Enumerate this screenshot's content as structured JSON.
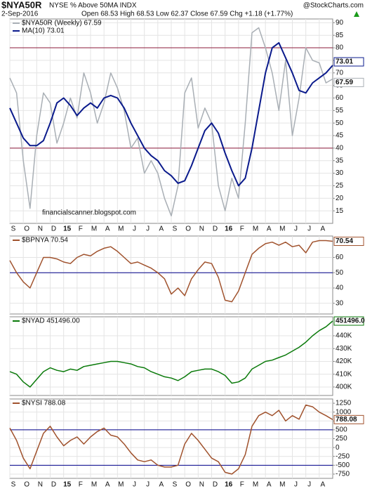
{
  "header": {
    "symbol": "$NYA50R",
    "description": "NYSE % Above 50MA  INDX",
    "source": "@StockCharts.com",
    "date": "2-Sep-2016",
    "quote": "Open 68.53  High 68.53  Low 62.37  Close 67.59  Chg +1.18 (+1.77%)"
  },
  "chart_data": [
    {
      "type": "line",
      "annotation": "financialscanner.blogspot.com",
      "categories": [
        "S",
        null,
        "O",
        null,
        "N",
        null,
        "D",
        null,
        "15",
        null,
        "F",
        null,
        "M",
        null,
        "A",
        null,
        "M",
        null,
        "J",
        null,
        "J",
        null,
        "A",
        null,
        "S",
        null,
        "O",
        null,
        "N",
        null,
        "D",
        null,
        "16",
        null,
        "F",
        null,
        "M",
        null,
        "A",
        null,
        "M",
        null,
        "J",
        null,
        "J",
        null,
        "A",
        null,
        null
      ],
      "ylim": [
        10,
        91.5
      ],
      "yticks": [
        15,
        20,
        25,
        30,
        35,
        40,
        45,
        50,
        55,
        60,
        65,
        70,
        75,
        80,
        85,
        90
      ],
      "grid": true,
      "hlines": [
        80,
        40
      ],
      "hline_color": "#8b1a3a",
      "series": [
        {
          "name": "$NYA50R (Weekly) 67.59",
          "color": "#a9afb5",
          "values": [
            68,
            62,
            35,
            16,
            45,
            62,
            58,
            42,
            50,
            60,
            52,
            70,
            62,
            50,
            58,
            70,
            64,
            55,
            40,
            44,
            30,
            35,
            30,
            20,
            13,
            25,
            62,
            68,
            48,
            56,
            50,
            25,
            15,
            28,
            20,
            50,
            86,
            88,
            80,
            70,
            55,
            75,
            45,
            60,
            80,
            75,
            74,
            66,
            67.59
          ]
        },
        {
          "name": "MA(10) 73.01",
          "color": "#0a1a8c",
          "values": [
            56,
            50,
            44,
            41,
            41,
            43,
            50,
            58,
            60,
            57,
            53,
            56,
            58,
            56,
            60,
            61,
            60,
            56,
            50,
            45,
            40,
            37,
            35,
            31,
            29,
            26,
            27,
            33,
            40,
            47,
            50,
            46,
            38,
            31,
            25,
            28,
            40,
            55,
            70,
            80,
            82,
            76,
            70,
            63,
            62,
            66,
            68,
            70,
            73.01
          ]
        }
      ]
    },
    {
      "type": "line",
      "ylim": [
        23,
        74
      ],
      "yticks": [
        30,
        40,
        50,
        60
      ],
      "grid": true,
      "hlines": [
        50
      ],
      "hline_color": "#00008b",
      "series": [
        {
          "name": "$BPNYA 70.54",
          "color": "#a0522d",
          "values": [
            58,
            50,
            44,
            40,
            50,
            60,
            60,
            59,
            57,
            56,
            60,
            62,
            61,
            64,
            66,
            67,
            64,
            60,
            56,
            57,
            55,
            53,
            50,
            46,
            36,
            40,
            35,
            46,
            52,
            57,
            56,
            47,
            32,
            31,
            38,
            50,
            62,
            66,
            69,
            70,
            68,
            70,
            67,
            68,
            63,
            70,
            71,
            71,
            70.54
          ]
        }
      ]
    },
    {
      "type": "line",
      "ylim": [
        393400,
        454800
      ],
      "yticks": [
        {
          "value": 400000,
          "label": "400K"
        },
        {
          "value": 410000,
          "label": "410K"
        },
        {
          "value": 420000,
          "label": "420K"
        },
        {
          "value": 430000,
          "label": "430K"
        },
        {
          "value": 440000,
          "label": "440K"
        }
      ],
      "grid": true,
      "series": [
        {
          "name": "$NYAD 451496.00",
          "color": "#0a7a0a",
          "values": [
            412000,
            410000,
            404000,
            400000,
            406000,
            412000,
            415000,
            413000,
            412000,
            414000,
            413000,
            416000,
            417000,
            418000,
            419000,
            420000,
            420000,
            419000,
            418000,
            416000,
            415000,
            412000,
            410000,
            408000,
            407000,
            405000,
            408000,
            412000,
            413000,
            414000,
            414000,
            412000,
            409000,
            403000,
            404000,
            407000,
            414000,
            417000,
            420000,
            421000,
            423000,
            425000,
            428000,
            431000,
            435000,
            440000,
            444000,
            447000,
            451496
          ],
          "value_labels": [
            null,
            null,
            null,
            null,
            null,
            null,
            null,
            null,
            null,
            null,
            null,
            null,
            null,
            null,
            null,
            null,
            null,
            null,
            null,
            null,
            null,
            null,
            null,
            null,
            null,
            null,
            null,
            null,
            null,
            null,
            null,
            null,
            null,
            null,
            null,
            null,
            null,
            null,
            null,
            null,
            null,
            null,
            null,
            null,
            null,
            null,
            null,
            null,
            "451496.00"
          ]
        }
      ]
    },
    {
      "type": "line",
      "ylim": [
        -870,
        1370
      ],
      "yticks": [
        -750,
        -500,
        -250,
        0,
        250,
        500,
        750,
        1000,
        1250
      ],
      "grid": true,
      "hlines": [
        500,
        -500
      ],
      "hline_color": "#00008b",
      "categories": [
        "S",
        null,
        "O",
        null,
        "N",
        null,
        "D",
        null,
        "15",
        null,
        "F",
        null,
        "M",
        null,
        "A",
        null,
        "M",
        null,
        "J",
        null,
        "J",
        null,
        "A",
        null,
        "S",
        null,
        "O",
        null,
        "N",
        null,
        "D",
        null,
        "16",
        null,
        "F",
        null,
        "M",
        null,
        "A",
        null,
        "M",
        null,
        "J",
        null,
        "J",
        null,
        "A",
        null,
        null
      ],
      "series": [
        {
          "name": "$NYSI 788.08",
          "color": "#a0522d",
          "values": [
            550,
            200,
            -300,
            -600,
            -100,
            400,
            600,
            300,
            50,
            200,
            300,
            100,
            300,
            450,
            550,
            350,
            300,
            100,
            -150,
            -350,
            -400,
            -350,
            -500,
            -550,
            -550,
            -500,
            100,
            400,
            200,
            -50,
            -300,
            -400,
            -700,
            -750,
            -600,
            -200,
            600,
            900,
            1000,
            900,
            1050,
            750,
            900,
            800,
            1200,
            1150,
            1000,
            900,
            788.08
          ]
        }
      ]
    }
  ]
}
